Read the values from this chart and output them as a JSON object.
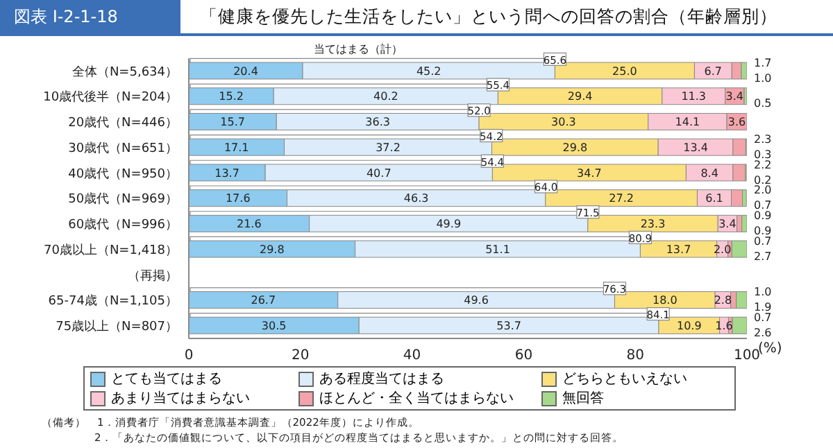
{
  "chart_data": {
    "type": "bar",
    "orientation": "horizontal",
    "stacked": true,
    "subtitle": "図表 I-2-1-18",
    "title": "「健康を優先した生活をしたい」という問への回答の割合（年齢層別）",
    "xlabel": "(%)",
    "categories": [
      "全体（N=5,634）",
      "10歳代後半（N=204）",
      "20歳代（N=446）",
      "30歳代（N=651）",
      "40歳代（N=950）",
      "50歳代（N=969）",
      "60歳代（N=996）",
      "70歳以上（N=1,418）",
      "（再掲）",
      "65-74歳（N=1,105）",
      "75歳以上（N=807）"
    ],
    "series": [
      {
        "name": "とても当てはまる",
        "color": "#8ecbee",
        "values": [
          20.4,
          15.2,
          15.7,
          17.1,
          13.7,
          17.6,
          21.6,
          29.8,
          null,
          26.7,
          30.5
        ],
        "value_labels": [
          "20.4",
          "15.2",
          "15.7",
          "17.1",
          "13.7",
          "17.6",
          "21.6",
          "29.8",
          null,
          "26.7",
          "30.5"
        ]
      },
      {
        "name": "ある程度当てはまる",
        "color": "#dcecfa",
        "values": [
          45.2,
          40.2,
          36.3,
          37.2,
          40.7,
          46.3,
          49.9,
          51.1,
          null,
          49.6,
          53.7
        ],
        "value_labels": [
          "45.2",
          "40.2",
          "36.3",
          "37.2",
          "40.7",
          "46.3",
          "49.9",
          "51.1",
          null,
          "49.6",
          "53.7"
        ]
      },
      {
        "name": "どちらともいえない",
        "color": "#fbe07e",
        "values": [
          25.0,
          29.4,
          30.3,
          29.8,
          34.7,
          27.2,
          23.3,
          13.7,
          null,
          18.0,
          10.9
        ],
        "value_labels": [
          "25.0",
          "29.4",
          "30.3",
          "29.8",
          "34.7",
          "27.2",
          "23.3",
          "13.7",
          null,
          "18.0",
          "10.9"
        ]
      },
      {
        "name": "あまり当てはまらない",
        "color": "#f9c8d4",
        "values": [
          6.7,
          11.3,
          14.1,
          13.4,
          8.4,
          6.1,
          3.4,
          2.0,
          null,
          2.8,
          1.6
        ],
        "value_labels": [
          "6.7",
          "11.3",
          "14.1",
          "13.4",
          "8.4",
          "6.1",
          "3.4",
          "2.0",
          null,
          "2.8",
          "1.6"
        ]
      },
      {
        "name": "ほとんど・全く当てはまらない",
        "color": "#f2a4aa",
        "values": [
          1.7,
          3.4,
          3.6,
          2.3,
          2.2,
          2.0,
          0.9,
          0.7,
          null,
          1.0,
          0.7
        ],
        "value_labels": [
          "1.7",
          "3.4",
          "3.6",
          "2.3",
          "2.2",
          "2.0",
          "0.9",
          "0.7",
          null,
          "1.0",
          "0.7"
        ]
      },
      {
        "name": "無回答",
        "color": "#a6d98c",
        "values": [
          1.0,
          0.5,
          null,
          0.3,
          0.2,
          0.7,
          0.9,
          2.7,
          null,
          1.9,
          2.6
        ],
        "value_labels": [
          "1.0",
          "0.5",
          null,
          "0.3",
          "0.2",
          "0.7",
          "0.9",
          "2.7",
          null,
          "1.9",
          "2.6"
        ]
      }
    ],
    "xlim": [
      0,
      100
    ],
    "xticks": [
      0,
      20,
      40,
      60,
      80,
      100
    ],
    "legend": "bottom",
    "annotations": [
      "当てはまる（計）",
      {
        "text": "65.6",
        "x": 65.6,
        "y": "全体（N=5,634）"
      },
      {
        "text": "55.4",
        "x": 55.4,
        "y": "10歳代後半（N=204）"
      },
      {
        "text": "52.0",
        "x": 52.0,
        "y": "20歳代（N=446）"
      },
      {
        "text": "54.2",
        "x": 54.2,
        "y": "30歳代（N=651）"
      },
      {
        "text": "54.4",
        "x": 54.4,
        "y": "40歳代（N=950）"
      },
      {
        "text": "64.0",
        "x": 64.0,
        "y": "50歳代（N=969）"
      },
      {
        "text": "71.5",
        "x": 71.5,
        "y": "60歳代（N=996）"
      },
      {
        "text": "80.9",
        "x": 80.9,
        "y": "70歳以上（N=1,418）"
      },
      {
        "text": "76.3",
        "x": 76.3,
        "y": "65-74歳（N=1,105）"
      },
      {
        "text": "84.1",
        "x": 84.1,
        "y": "75歳以上（N=807）"
      },
      "（備考）　1．消費者庁「消費者意識基本調査」（2022年度）により作成。",
      "2．「あなたの価値観について、以下の項目がどの程度当てはまると思いますか。」との問に対する回答。"
    ]
  }
}
